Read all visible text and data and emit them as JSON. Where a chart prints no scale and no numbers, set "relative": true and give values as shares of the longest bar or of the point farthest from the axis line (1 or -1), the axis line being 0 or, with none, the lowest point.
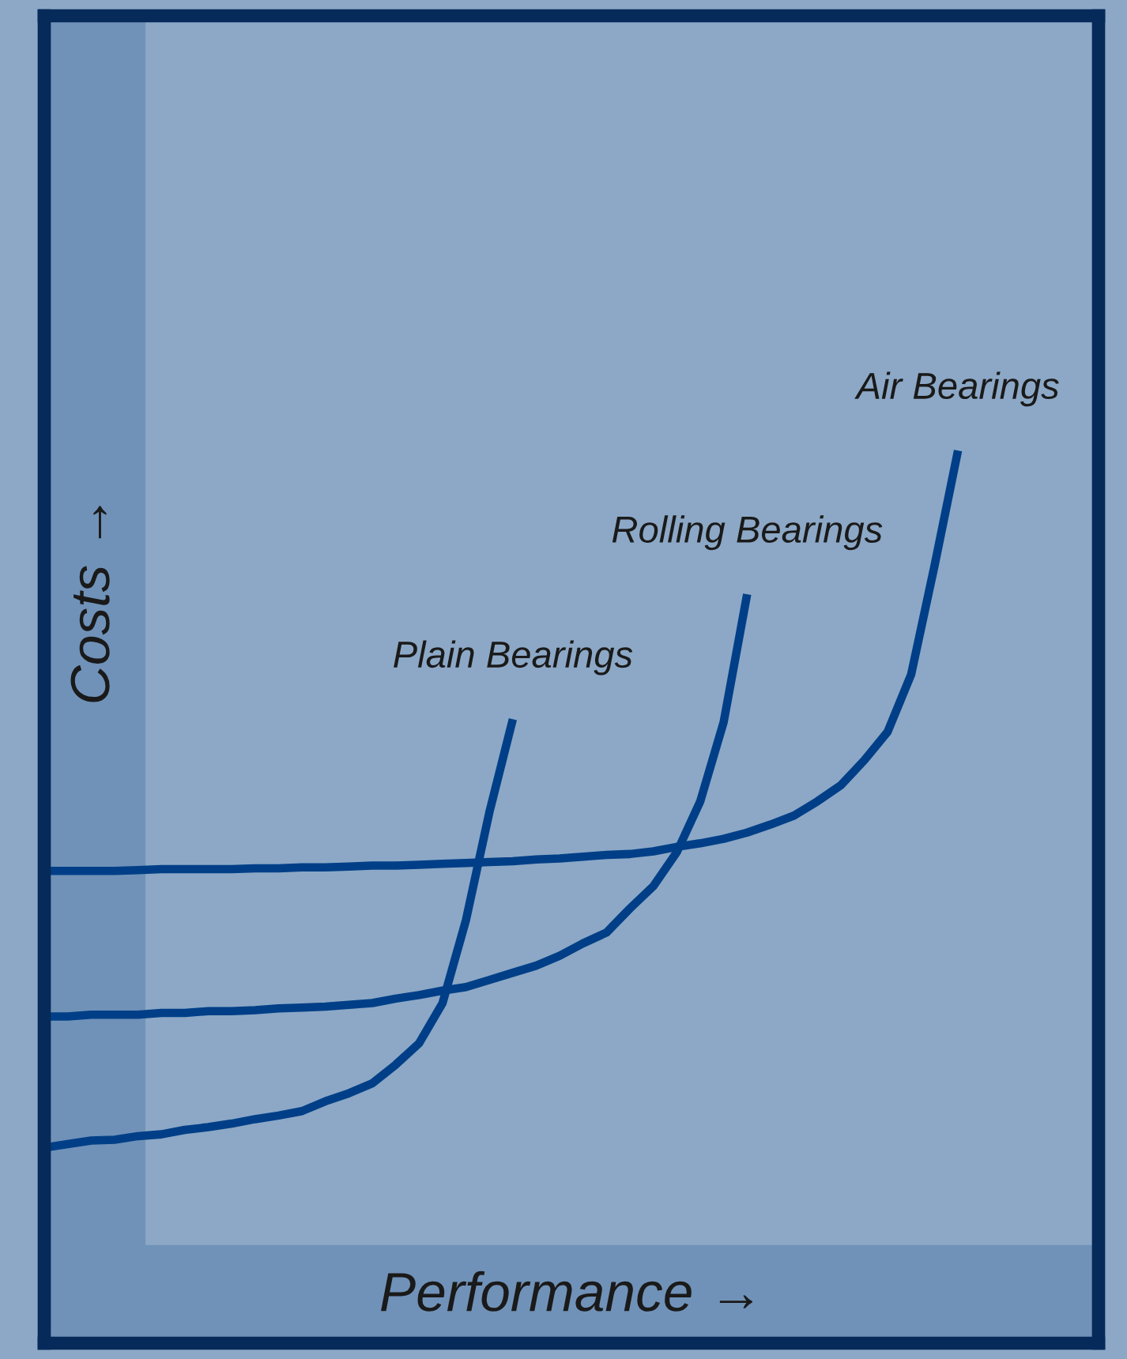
{
  "chart_data": {
    "type": "line",
    "relative": true,
    "xlabel": "Performance →",
    "ylabel": "Costs →",
    "marker": "none",
    "line_style": "solid",
    "categories": [
      null,
      null,
      null,
      null,
      null,
      null,
      null,
      null,
      null,
      null,
      null,
      null,
      null,
      null,
      null,
      null,
      null,
      null,
      null,
      null,
      null,
      null,
      null,
      null,
      null,
      null,
      null,
      null,
      null,
      null,
      null,
      null,
      null,
      null,
      null,
      null,
      null,
      null,
      null,
      null,
      null,
      null,
      null,
      null,
      null,
      null
    ],
    "series": [
      {
        "name": "Plain Bearings",
        "color": "#003f87",
        "values": [
          0.219,
          0.223,
          0.227,
          0.228,
          0.232,
          0.234,
          0.239,
          0.242,
          0.246,
          0.251,
          0.255,
          0.26,
          0.271,
          0.28,
          0.291,
          0.312,
          0.336,
          0.381,
          0.474,
          0.595,
          0.699,
          null,
          null,
          null,
          null,
          null,
          null,
          null,
          null,
          null,
          null,
          null,
          null,
          null,
          null,
          null,
          null,
          null,
          null,
          null,
          null,
          null,
          null,
          null,
          null,
          null
        ]
      },
      {
        "name": "Rolling Bearings",
        "color": "#003f87",
        "values": [
          0.366,
          0.366,
          0.368,
          0.368,
          0.368,
          0.37,
          0.37,
          0.372,
          0.372,
          0.373,
          0.375,
          0.376,
          0.377,
          0.379,
          0.381,
          0.386,
          0.39,
          0.395,
          0.399,
          0.407,
          0.415,
          0.423,
          0.434,
          0.448,
          0.46,
          0.487,
          0.512,
          0.55,
          0.607,
          0.696,
          0.839,
          null,
          null,
          null,
          null,
          null,
          null,
          null,
          null,
          null,
          null,
          null,
          null,
          null,
          null,
          null
        ]
      },
      {
        "name": "Air Bearings",
        "color": "#003f87",
        "values": [
          0.529,
          0.529,
          0.529,
          0.529,
          0.53,
          0.531,
          0.531,
          0.531,
          0.531,
          0.532,
          0.532,
          0.533,
          0.533,
          0.534,
          0.535,
          0.535,
          0.536,
          0.537,
          0.538,
          0.539,
          0.54,
          0.542,
          0.543,
          0.545,
          0.547,
          0.548,
          0.551,
          0.556,
          0.56,
          0.565,
          0.572,
          0.581,
          0.591,
          0.607,
          0.625,
          0.653,
          0.685,
          0.749,
          0.871,
          1,
          null,
          null,
          null,
          null,
          null,
          null
        ]
      }
    ]
  }
}
